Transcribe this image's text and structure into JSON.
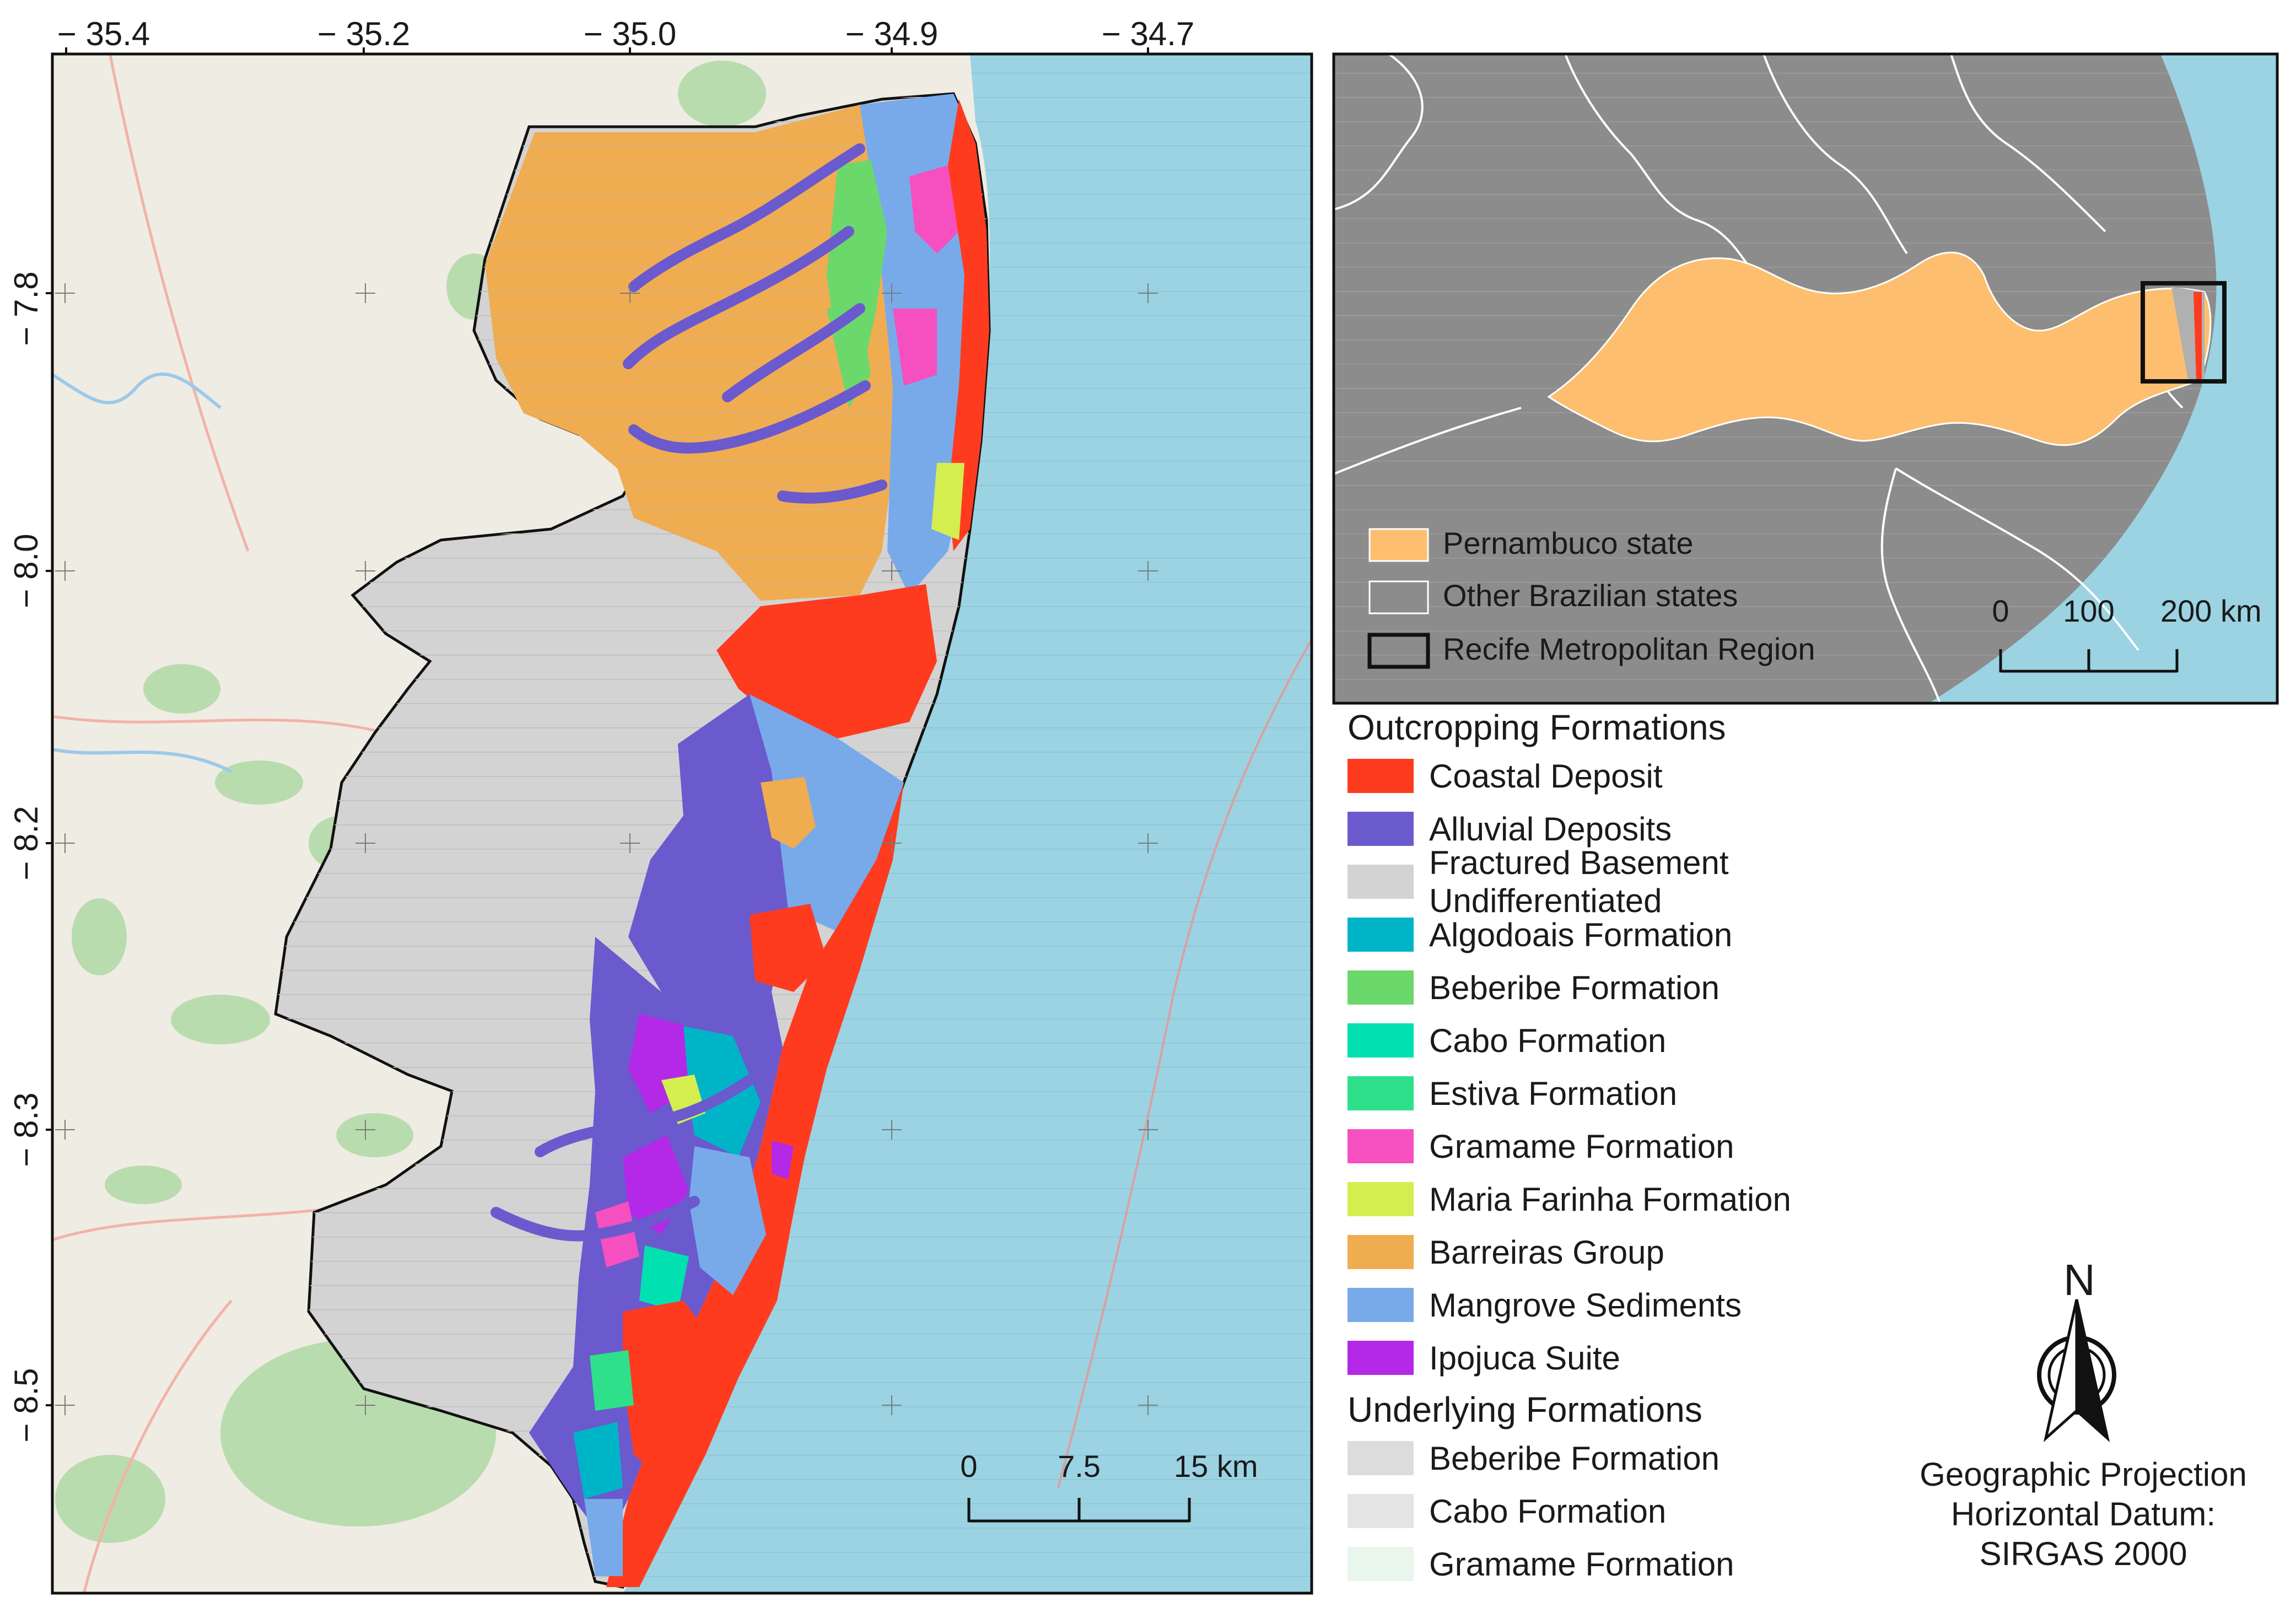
{
  "map": {
    "lon_ticks": [
      "− 35.4",
      "− 35.2",
      "− 35.0",
      "− 34.9",
      "− 34.7"
    ],
    "lat_ticks": [
      "− 7.8",
      "− 8.0",
      "− 8.2",
      "− 8.3",
      "− 8.5"
    ],
    "scale": {
      "labels": [
        "0",
        "7.5",
        "15 km"
      ]
    },
    "colors": {
      "ocean": "#9bd3e3",
      "basement": "#d3d3d3",
      "land_bg": "#efece3"
    }
  },
  "inset": {
    "legend": [
      {
        "label": "Pernambuco state",
        "color": "#fdbf6f"
      },
      {
        "label": "Other Brazilian states",
        "color": "#8c8c8c"
      },
      {
        "label": "Recife Metropolitan Region",
        "color": "none"
      }
    ],
    "scale": {
      "labels": [
        "0",
        "100",
        "200 km"
      ]
    },
    "colors": {
      "states": "#8c8c8c",
      "pernambuco": "#fdbf6f",
      "ocean": "#9bd3e3"
    }
  },
  "legend": {
    "outcropping_title": "Outcropping Formations",
    "outcropping": [
      {
        "label": "Coastal Deposit",
        "color": "#ff3b1f"
      },
      {
        "label": "Alluvial Deposits",
        "color": "#6a5acd"
      },
      {
        "label": "Fractured Basement Undifferentiated",
        "color": "#d3d3d3"
      },
      {
        "label": "Algodoais Formation",
        "color": "#00b4c8"
      },
      {
        "label": "Beberibe Formation",
        "color": "#6bd86b"
      },
      {
        "label": "Cabo Formation",
        "color": "#00e0b0"
      },
      {
        "label": "Estiva Formation",
        "color": "#2ee08a"
      },
      {
        "label": "Gramame Formation",
        "color": "#f54fc0"
      },
      {
        "label": "Maria Farinha Formation",
        "color": "#d4ee50"
      },
      {
        "label": "Barreiras Group",
        "color": "#f0ac50"
      },
      {
        "label": "Mangrove Sediments",
        "color": "#78aaea"
      },
      {
        "label": "Ipojuca Suite",
        "color": "#b428e8"
      }
    ],
    "underlying_title": "Underlying Formations",
    "underlying": [
      {
        "label": "Beberibe Formation",
        "color": "#dcdcdc"
      },
      {
        "label": "Cabo Formation",
        "color": "#e4e4e4"
      },
      {
        "label": "Gramame Formation",
        "color": "#e8f6ec"
      }
    ]
  },
  "north_arrow": {
    "label": "N"
  },
  "projection": {
    "line1": "Geographic Projection",
    "line2": "Horizontal Datum:",
    "line3": "SIRGAS 2000"
  }
}
